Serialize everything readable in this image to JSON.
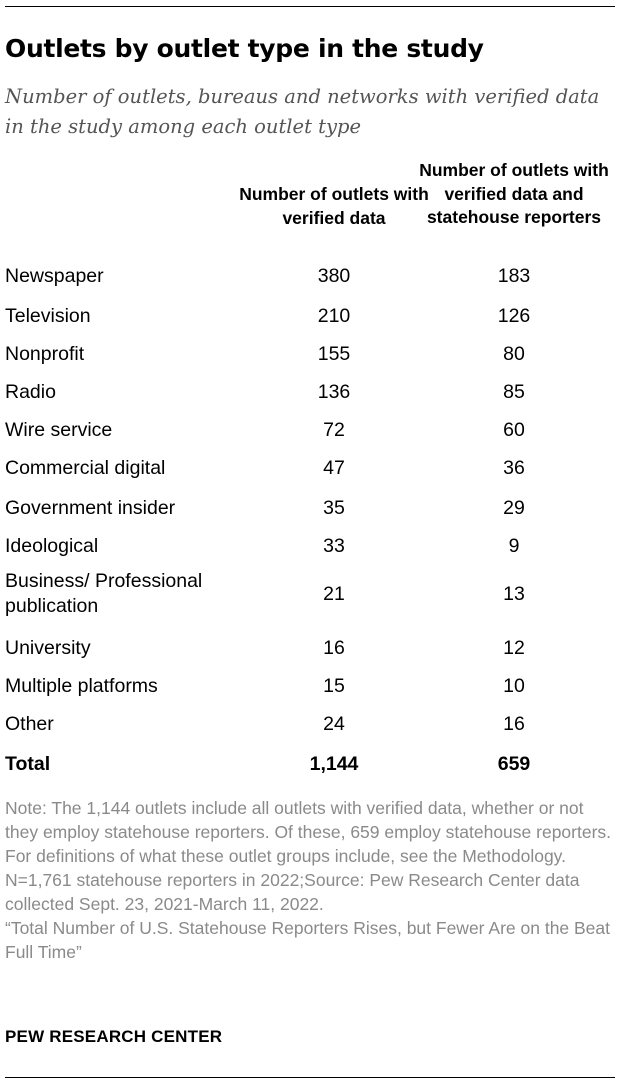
{
  "title": "Outlets by outlet type in the study",
  "subtitle": "Number of outlets, bureaus and networks with verified data in the study among each outlet type",
  "chart_data": {
    "type": "table",
    "columns": [
      "Number of outlets with verified data",
      "Number of outlets with verified data and statehouse reporters"
    ],
    "rows": [
      {
        "label": "Newspaper",
        "values": [
          "380",
          "183"
        ]
      },
      {
        "label": "Television",
        "values": [
          "210",
          "126"
        ]
      },
      {
        "label": "Nonprofit",
        "values": [
          "155",
          "80"
        ]
      },
      {
        "label": "Radio",
        "values": [
          "136",
          "85"
        ]
      },
      {
        "label": "Wire service",
        "values": [
          "72",
          "60"
        ]
      },
      {
        "label": "Commercial digital",
        "values": [
          "47",
          "36"
        ]
      },
      {
        "label": "Government insider",
        "values": [
          "35",
          "29"
        ]
      },
      {
        "label": "Ideological",
        "values": [
          "33",
          "9"
        ]
      },
      {
        "label": "Business/ Professional publication",
        "values": [
          "21",
          "13"
        ]
      },
      {
        "label": "University",
        "values": [
          "16",
          "12"
        ]
      },
      {
        "label": "Multiple platforms",
        "values": [
          "15",
          "10"
        ]
      },
      {
        "label": "Other",
        "values": [
          "24",
          "16"
        ]
      }
    ],
    "total": {
      "label": "Total",
      "values": [
        "1,144",
        "659"
      ]
    }
  },
  "notes": {
    "note": "Note: The 1,144 outlets include all outlets with verified data, whether or not they employ statehouse reporters. Of these, 659 employ statehouse reporters. For definitions of what these outlet groups include, see the Methodology.",
    "source": "N=1,761 statehouse reporters in 2022;Source: Pew Research Center data collected Sept. 23, 2021-March 11, 2022.",
    "report": "“Total Number of U.S. Statehouse Reporters Rises, but Fewer Are on the Beat Full Time”"
  },
  "brand": "PEW RESEARCH CENTER"
}
